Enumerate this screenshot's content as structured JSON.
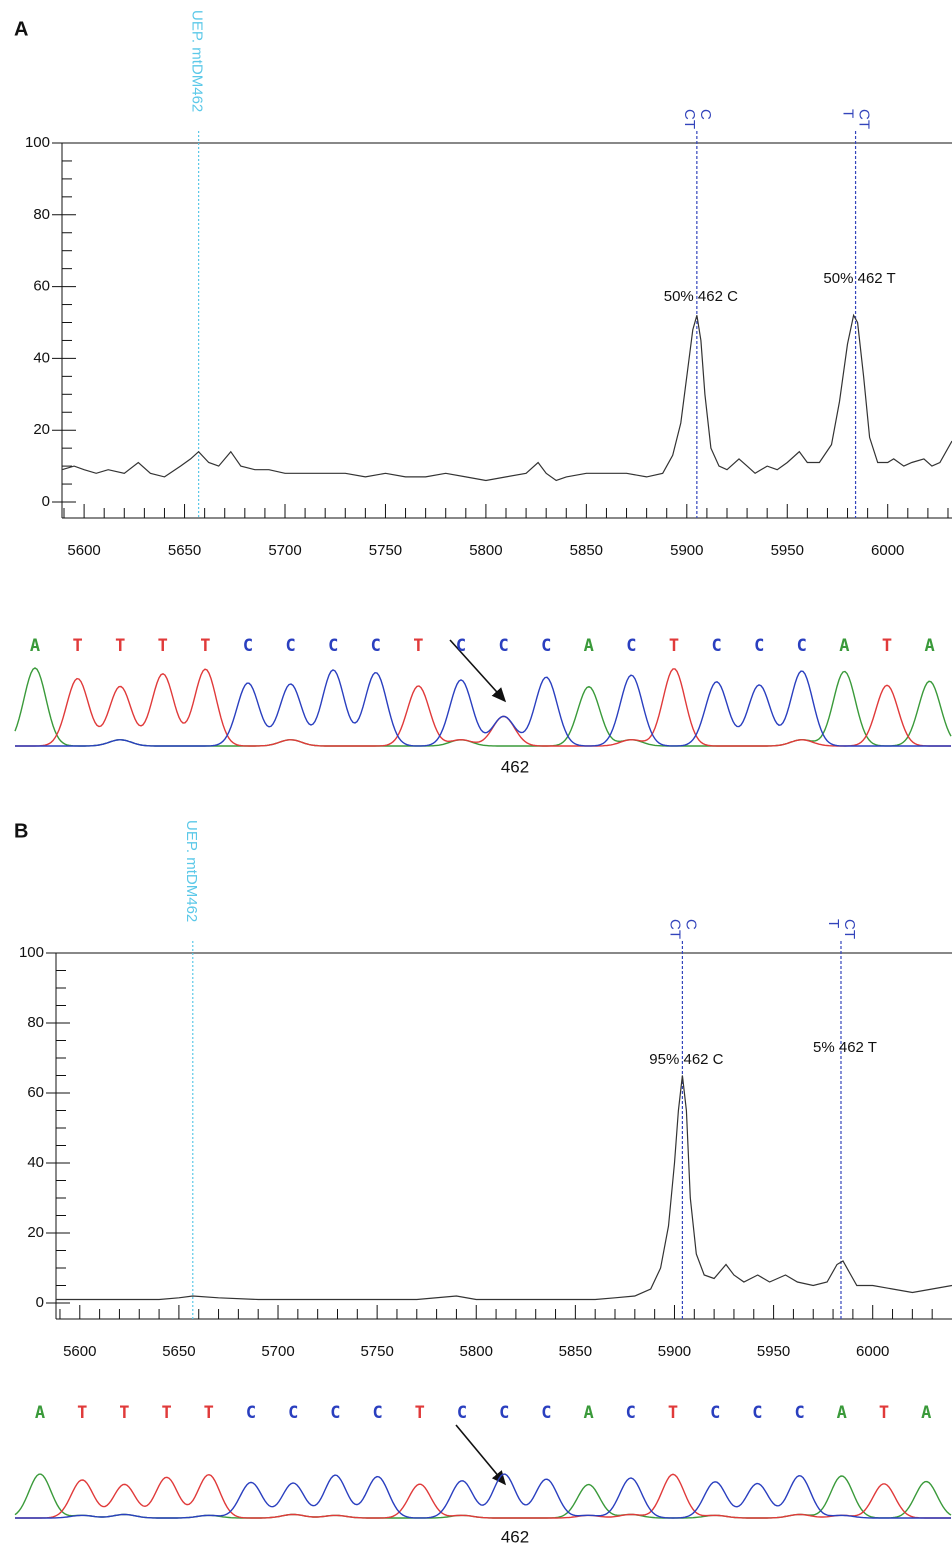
{
  "chart_data": [
    {
      "panel": "A",
      "type": "line",
      "x": [
        5589,
        5595,
        5600,
        5606,
        5612,
        5620,
        5627,
        5633,
        5640,
        5648,
        5653,
        5657,
        5662,
        5667,
        5673,
        5678,
        5685,
        5692,
        5700,
        5710,
        5720,
        5730,
        5740,
        5750,
        5760,
        5770,
        5780,
        5790,
        5800,
        5810,
        5820,
        5826,
        5830,
        5835,
        5840,
        5850,
        5860,
        5870,
        5880,
        5888,
        5893,
        5897,
        5900,
        5903,
        5905,
        5907,
        5909,
        5912,
        5916,
        5920,
        5926,
        5930,
        5934,
        5940,
        5945,
        5950,
        5956,
        5960,
        5966,
        5972,
        5976,
        5980,
        5983,
        5985,
        5988,
        5991,
        5995,
        6000,
        6003,
        6008,
        6012,
        6018,
        6022,
        6026,
        6032
      ],
      "values": [
        9,
        10,
        9,
        8,
        9,
        8,
        11,
        8,
        7,
        10,
        12,
        14,
        11,
        10,
        14,
        10,
        9,
        9,
        8,
        8,
        8,
        8,
        7,
        8,
        7,
        7,
        8,
        7,
        6,
        7,
        8,
        11,
        8,
        6,
        7,
        8,
        8,
        8,
        7,
        8,
        13,
        22,
        35,
        48,
        52,
        45,
        30,
        15,
        10,
        9,
        12,
        10,
        8,
        10,
        9,
        11,
        14,
        11,
        11,
        16,
        28,
        44,
        52,
        50,
        35,
        18,
        11,
        11,
        12,
        10,
        11,
        12,
        10,
        11,
        17
      ],
      "color": "#333333",
      "xlim": [
        5589,
        6032
      ],
      "ylim": [
        0,
        100
      ],
      "xticks": [
        5600,
        5650,
        5700,
        5750,
        5800,
        5850,
        5900,
        5950,
        6000
      ],
      "xminorticks": [
        5590,
        5610,
        5620,
        5630,
        5640,
        5660,
        5670,
        5680,
        5690,
        5710,
        5720,
        5730,
        5740,
        5760,
        5770,
        5780,
        5790,
        5810,
        5820,
        5830,
        5840,
        5860,
        5870,
        5880,
        5890,
        5910,
        5920,
        5930,
        5940,
        5960,
        5970,
        5980,
        5990,
        6010,
        6020,
        6030
      ],
      "yticks": [
        0,
        20,
        40,
        60,
        80,
        100
      ],
      "yminorticks": [
        5,
        10,
        15,
        25,
        30,
        35,
        45,
        50,
        55,
        65,
        70,
        75,
        85,
        90,
        95
      ],
      "markers": [
        {
          "x": 5657,
          "labels": [
            "UEP. mtDM462"
          ],
          "color": "#5bc8e8"
        },
        {
          "x": 5905,
          "labels": [
            "CT",
            "C"
          ],
          "annotation": "50% 462 C",
          "color": "#3344bb"
        },
        {
          "x": 5984,
          "labels": [
            "T",
            "CT"
          ],
          "annotation": "50% 462 T",
          "color": "#3344bb"
        }
      ],
      "bases": [
        "A",
        "T",
        "T",
        "T",
        "T",
        "C",
        "C",
        "C",
        "C",
        "T",
        "C",
        "C",
        "C",
        "A",
        "C",
        "T",
        "C",
        "C",
        "C",
        "A",
        "T",
        "A"
      ],
      "base_colors": {
        "A": "#3a9a3a",
        "T": "#e03a3a",
        "C": "#2a3fbf"
      },
      "site_label": "462"
    },
    {
      "panel": "B",
      "type": "line",
      "x": [
        5588,
        5600,
        5620,
        5640,
        5650,
        5657,
        5670,
        5690,
        5710,
        5730,
        5750,
        5770,
        5790,
        5800,
        5820,
        5840,
        5850,
        5860,
        5870,
        5880,
        5888,
        5893,
        5897,
        5900,
        5902,
        5904,
        5906,
        5908,
        5911,
        5915,
        5920,
        5926,
        5930,
        5935,
        5942,
        5948,
        5956,
        5962,
        5970,
        5977,
        5982,
        5985,
        5988,
        5992,
        6000,
        6010,
        6020,
        6030,
        6040
      ],
      "values": [
        1,
        1,
        1,
        1,
        1.5,
        2,
        1.5,
        1,
        1,
        1,
        1,
        1,
        2,
        1,
        1,
        1,
        1,
        1,
        1.5,
        2,
        4,
        10,
        22,
        40,
        55,
        65,
        55,
        30,
        14,
        8,
        7,
        11,
        8,
        6,
        8,
        6,
        8,
        6,
        5,
        6,
        11,
        12,
        9,
        5,
        5,
        4,
        3,
        4,
        5
      ],
      "color": "#333333",
      "xlim": [
        5588,
        6040
      ],
      "ylim": [
        0,
        100
      ],
      "xticks": [
        5600,
        5650,
        5700,
        5750,
        5800,
        5850,
        5900,
        5950,
        6000
      ],
      "xminorticks": [
        5590,
        5610,
        5620,
        5630,
        5640,
        5660,
        5670,
        5680,
        5690,
        5710,
        5720,
        5730,
        5740,
        5760,
        5770,
        5780,
        5790,
        5810,
        5820,
        5830,
        5840,
        5860,
        5870,
        5880,
        5890,
        5910,
        5920,
        5930,
        5940,
        5960,
        5970,
        5980,
        5990,
        6010,
        6020,
        6030
      ],
      "yticks": [
        0,
        20,
        40,
        60,
        80,
        100
      ],
      "yminorticks": [
        5,
        10,
        15,
        25,
        30,
        35,
        45,
        50,
        55,
        65,
        70,
        75,
        85,
        90,
        95
      ],
      "markers": [
        {
          "x": 5657,
          "labels": [
            "UEP. mtDM462"
          ],
          "color": "#5bc8e8"
        },
        {
          "x": 5904,
          "labels": [
            "CT",
            "C"
          ],
          "annotation": "95% 462 C",
          "color": "#3344bb"
        },
        {
          "x": 5984,
          "labels": [
            "T",
            "CT"
          ],
          "annotation": "5% 462 T",
          "color": "#3344bb"
        }
      ],
      "bases": [
        "A",
        "T",
        "T",
        "T",
        "T",
        "C",
        "C",
        "C",
        "C",
        "T",
        "C",
        "C",
        "C",
        "A",
        "C",
        "T",
        "C",
        "C",
        "C",
        "A",
        "T",
        "A"
      ],
      "base_colors": {
        "A": "#3a9a3a",
        "T": "#e03a3a",
        "C": "#2a3fbf"
      },
      "site_label": "462"
    }
  ]
}
